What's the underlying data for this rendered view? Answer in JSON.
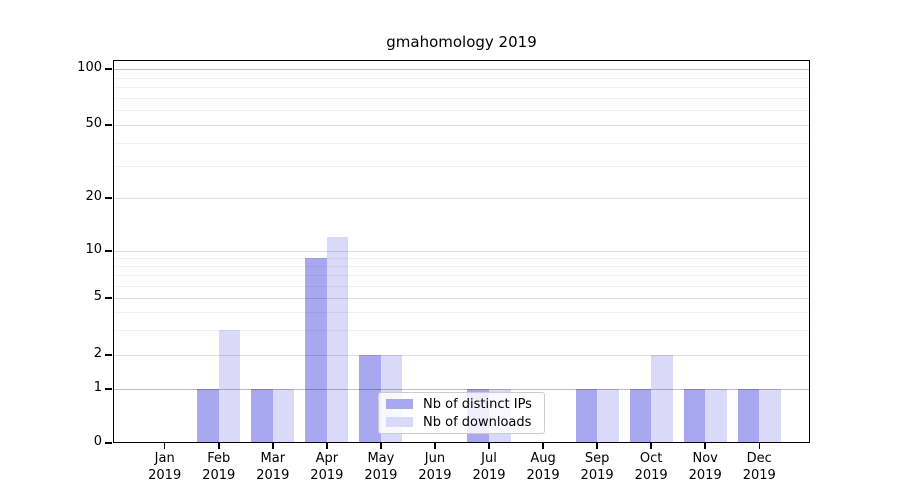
{
  "chart_data": {
    "type": "bar",
    "title": "gmahomology 2019",
    "categories": [
      "Jan",
      "Feb",
      "Mar",
      "Apr",
      "May",
      "Jun",
      "Jul",
      "Aug",
      "Sep",
      "Oct",
      "Nov",
      "Dec"
    ],
    "xtick_second_line": "2019",
    "series": [
      {
        "name": "Nb of distinct IPs",
        "color": "#a8a8f1",
        "values": [
          0,
          1,
          1,
          9,
          2,
          0,
          1,
          0,
          1,
          1,
          1,
          1
        ]
      },
      {
        "name": "Nb of downloads",
        "color": "#dadaf8",
        "values": [
          0,
          3,
          1,
          12,
          2,
          0,
          1,
          0,
          1,
          2,
          1,
          1
        ]
      }
    ],
    "yticks_major": [
      0,
      1,
      2,
      5,
      10,
      20,
      50,
      100
    ],
    "yticks_minor": [
      3,
      4,
      6,
      7,
      8,
      9,
      30,
      40,
      60,
      70,
      80,
      90
    ],
    "ylim": [
      0,
      100
    ],
    "yscale": "symlog-like",
    "grid": true,
    "legend_position": "lower center-right inside plot"
  }
}
